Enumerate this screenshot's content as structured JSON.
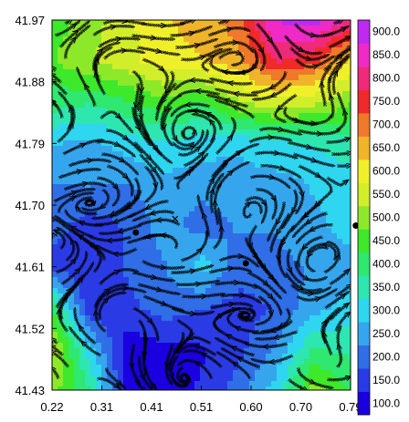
{
  "chart_data": {
    "type": "heatmap",
    "title": "",
    "xlabel": "",
    "ylabel": "",
    "xlim": [
      0.22,
      0.79
    ],
    "ylim": [
      41.43,
      41.97
    ],
    "x_tick_labels": [
      "0.22",
      "0.31",
      "0.41",
      "0.51",
      "0.60",
      "0.70",
      "0.79"
    ],
    "y_tick_labels": [
      "41.97",
      "41.88",
      "41.79",
      "41.70",
      "41.61",
      "41.52",
      "41.43"
    ],
    "overlay": "streamlines (flow field arrows)",
    "colorbar": {
      "levels": [
        "100.0",
        "150.0",
        "200.0",
        "250.0",
        "300.0",
        "350.0",
        "400.0",
        "450.0",
        "500.0",
        "550.0",
        "600.0",
        "650.0",
        "700.0",
        "750.0",
        "800.0",
        "850.0",
        "900.0"
      ],
      "colors": [
        "#1a00e0",
        "#2a3be6",
        "#2f6ee6",
        "#35a6ee",
        "#2ed6f0",
        "#2ee6b0",
        "#2ee870",
        "#3ee82a",
        "#8ee82a",
        "#d2ee2a",
        "#f0f02a",
        "#f0b42a",
        "#f0782a",
        "#f02a2a",
        "#f02a7a",
        "#f02ac6",
        "#c02af0"
      ]
    },
    "value_grid_x": [
      0.22,
      0.29,
      0.36,
      0.43,
      0.51,
      0.58,
      0.65,
      0.72,
      0.79
    ],
    "value_grid_y": [
      41.97,
      41.91,
      41.85,
      41.79,
      41.73,
      41.67,
      41.61,
      41.55,
      41.49,
      41.43
    ],
    "values": [
      [
        450,
        500,
        560,
        620,
        650,
        700,
        880,
        900,
        820
      ],
      [
        470,
        520,
        560,
        600,
        620,
        660,
        780,
        740,
        620
      ],
      [
        400,
        380,
        420,
        460,
        420,
        520,
        560,
        540,
        480
      ],
      [
        280,
        260,
        300,
        320,
        300,
        280,
        320,
        330,
        360
      ],
      [
        220,
        230,
        220,
        260,
        240,
        260,
        250,
        280,
        290
      ],
      [
        200,
        150,
        180,
        250,
        200,
        230,
        230,
        260,
        300
      ],
      [
        150,
        140,
        180,
        220,
        300,
        200,
        210,
        230,
        250
      ],
      [
        420,
        130,
        160,
        200,
        180,
        150,
        180,
        250,
        300
      ],
      [
        550,
        300,
        90,
        110,
        120,
        160,
        230,
        380,
        360
      ],
      [
        500,
        380,
        110,
        100,
        130,
        200,
        300,
        500,
        420
      ]
    ],
    "markers": [
      {
        "symbol": "dot",
        "x": 0.38,
        "y": 41.66
      },
      {
        "symbol": "dot",
        "x": 0.59,
        "y": 41.615
      },
      {
        "symbol": "dot",
        "x": 0.8,
        "y": 41.67
      },
      {
        "symbol": "x",
        "x": 0.455,
        "y": 41.68
      }
    ]
  }
}
